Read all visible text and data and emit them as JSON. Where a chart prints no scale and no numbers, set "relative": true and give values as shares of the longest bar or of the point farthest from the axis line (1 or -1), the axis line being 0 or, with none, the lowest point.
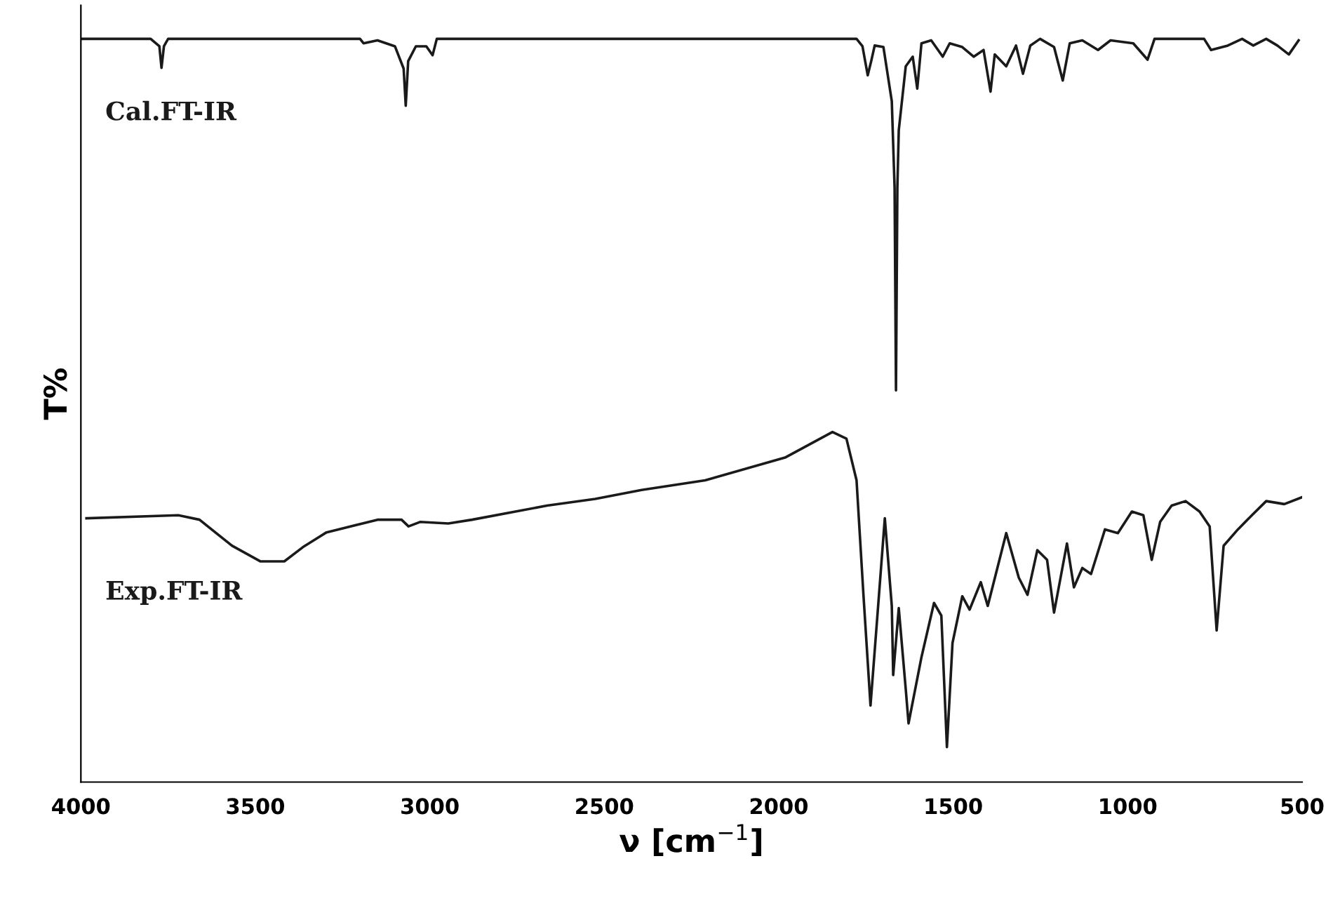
{
  "chart_data": {
    "type": "line",
    "relative": true,
    "xlabel": "ν [cm$^{−1}$]",
    "ylabel": "T%",
    "xlim": [
      4000,
      500
    ],
    "xticks": [
      4000,
      3500,
      3000,
      2500,
      2000,
      1500,
      1000,
      500
    ],
    "legend": false,
    "grid": false,
    "marker": "none",
    "line_style": "solid",
    "series": [
      {
        "name": "Cal.FT-IR",
        "color": "#1a1a1a",
        "x": [
          4000,
          3800,
          3775,
          3769,
          3762,
          3750,
          3200,
          3190,
          3150,
          3100,
          3075,
          3069,
          3062,
          3040,
          3010,
          2992,
          2980,
          1777,
          1760,
          1745,
          1735,
          1725,
          1700,
          1676,
          1668,
          1664,
          1660,
          1656,
          1636,
          1616,
          1603,
          1591,
          1563,
          1530,
          1510,
          1474,
          1441,
          1413,
          1393,
          1381,
          1348,
          1320,
          1300,
          1279,
          1251,
          1211,
          1186,
          1166,
          1130,
          1085,
          1049,
          984,
          943,
          923,
          781,
          761,
          713,
          672,
          640,
          603,
          571,
          538,
          510
        ],
        "values": [
          1.0,
          1.0,
          0.99,
          0.961,
          0.99,
          1.0,
          1.0,
          0.994,
          0.998,
          0.99,
          0.96,
          0.91,
          0.97,
          0.99,
          0.99,
          0.978,
          1.0,
          1.0,
          0.99,
          0.951,
          0.97,
          0.991,
          0.989,
          0.916,
          0.8,
          0.527,
          0.8,
          0.877,
          0.963,
          0.976,
          0.933,
          0.994,
          0.998,
          0.976,
          0.994,
          0.989,
          0.976,
          0.985,
          0.929,
          0.979,
          0.963,
          0.991,
          0.953,
          0.991,
          1.0,
          0.989,
          0.944,
          0.994,
          0.998,
          0.985,
          0.998,
          0.994,
          0.972,
          1.0,
          1.0,
          0.985,
          0.991,
          1.0,
          0.991,
          1.0,
          0.991,
          0.979,
          0.998
        ]
      },
      {
        "name": "Exp.FT-IR",
        "color": "#1a1a1a",
        "x": [
          3984,
          3721,
          3660,
          3567,
          3486,
          3417,
          3364,
          3296,
          3150,
          3081,
          3061,
          3028,
          2947,
          2879,
          2664,
          2526,
          2393,
          2211,
          1980,
          1846,
          1806,
          1777,
          1757,
          1737,
          1713,
          1696,
          1676,
          1672,
          1656,
          1636,
          1628,
          1591,
          1555,
          1534,
          1518,
          1502,
          1474,
          1453,
          1421,
          1401,
          1348,
          1312,
          1287,
          1259,
          1231,
          1211,
          1174,
          1154,
          1130,
          1105,
          1065,
          1028,
          988,
          955,
          931,
          907,
          874,
          834,
          794,
          765,
          745,
          725,
          684,
          644,
          603,
          551,
          502
        ],
        "values": [
          0.355,
          0.359,
          0.353,
          0.318,
          0.297,
          0.297,
          0.316,
          0.336,
          0.353,
          0.353,
          0.344,
          0.35,
          0.348,
          0.353,
          0.372,
          0.381,
          0.393,
          0.406,
          0.437,
          0.471,
          0.462,
          0.406,
          0.25,
          0.103,
          0.25,
          0.355,
          0.237,
          0.144,
          0.234,
          0.125,
          0.079,
          0.168,
          0.241,
          0.224,
          0.047,
          0.187,
          0.25,
          0.232,
          0.269,
          0.237,
          0.335,
          0.275,
          0.252,
          0.312,
          0.299,
          0.228,
          0.321,
          0.262,
          0.288,
          0.28,
          0.34,
          0.335,
          0.364,
          0.359,
          0.299,
          0.35,
          0.372,
          0.378,
          0.364,
          0.344,
          0.204,
          0.318,
          0.34,
          0.359,
          0.378,
          0.374,
          0.383
        ]
      }
    ]
  }
}
